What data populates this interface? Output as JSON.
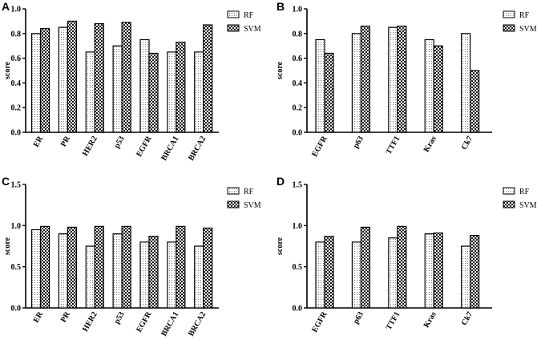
{
  "chart_data": [
    {
      "panel": "A",
      "type": "bar",
      "categories": [
        "ER",
        "PR",
        "HER2",
        "p53",
        "EGFR",
        "BRCA1",
        "BRCA2"
      ],
      "series": [
        {
          "name": "RF",
          "values": [
            0.8,
            0.85,
            0.65,
            0.7,
            0.75,
            0.65,
            0.65
          ]
        },
        {
          "name": "SVM",
          "values": [
            0.84,
            0.9,
            0.88,
            0.89,
            0.64,
            0.73,
            0.87
          ]
        }
      ],
      "ylabel": "score",
      "ylim": [
        0,
        1.0
      ],
      "yticks": [
        "0.0",
        "0.2",
        "0.4",
        "0.6",
        "0.8",
        "1.0"
      ],
      "ytick_values": [
        0,
        0.2,
        0.4,
        0.6,
        0.8,
        1.0
      ],
      "legend": "top-right"
    },
    {
      "panel": "B",
      "type": "bar",
      "categories": [
        "EGFR",
        "p63",
        "TTF1",
        "Kras",
        "Ck7"
      ],
      "series": [
        {
          "name": "RF",
          "values": [
            0.75,
            0.8,
            0.85,
            0.75,
            0.8
          ]
        },
        {
          "name": "SVM",
          "values": [
            0.64,
            0.86,
            0.86,
            0.7,
            0.5
          ]
        }
      ],
      "ylabel": "score",
      "ylim": [
        0,
        1.0
      ],
      "yticks": [
        "0.0",
        "0.2",
        "0.4",
        "0.6",
        "0.8",
        "1.0"
      ],
      "ytick_values": [
        0,
        0.2,
        0.4,
        0.6,
        0.8,
        1.0
      ],
      "legend": "top-right"
    },
    {
      "panel": "C",
      "type": "bar",
      "categories": [
        "ER",
        "PR",
        "HER2",
        "p53",
        "EGFR",
        "BRCA1",
        "BRCA2"
      ],
      "series": [
        {
          "name": "RF",
          "values": [
            0.95,
            0.9,
            0.75,
            0.9,
            0.8,
            0.8,
            0.75
          ]
        },
        {
          "name": "SVM",
          "values": [
            0.99,
            0.98,
            0.99,
            0.99,
            0.87,
            0.99,
            0.97
          ]
        }
      ],
      "ylabel": "score",
      "ylim": [
        0,
        1.5
      ],
      "yticks": [
        "0.0",
        "0.5",
        "1.0",
        "1.5"
      ],
      "ytick_values": [
        0,
        0.5,
        1.0,
        1.5
      ],
      "legend": "top-right"
    },
    {
      "panel": "D",
      "type": "bar",
      "categories": [
        "EGFR",
        "p63",
        "TTF1",
        "Kras",
        "Ck7"
      ],
      "series": [
        {
          "name": "RF",
          "values": [
            0.8,
            0.8,
            0.85,
            0.9,
            0.75
          ]
        },
        {
          "name": "SVM",
          "values": [
            0.87,
            0.98,
            0.99,
            0.91,
            0.88
          ]
        }
      ],
      "ylabel": "score",
      "ylim": [
        0,
        1.5
      ],
      "yticks": [
        "0.0",
        "0.5",
        "1.0",
        "1.5"
      ],
      "ytick_values": [
        0,
        0.5,
        1.0,
        1.5
      ],
      "legend": "top-right"
    }
  ],
  "colors": {
    "axis": "#000000",
    "rf_fill": "#ffffff",
    "rf_dots": "#555555",
    "svm_dark": "#111111",
    "svm_light": "#ffffff"
  }
}
